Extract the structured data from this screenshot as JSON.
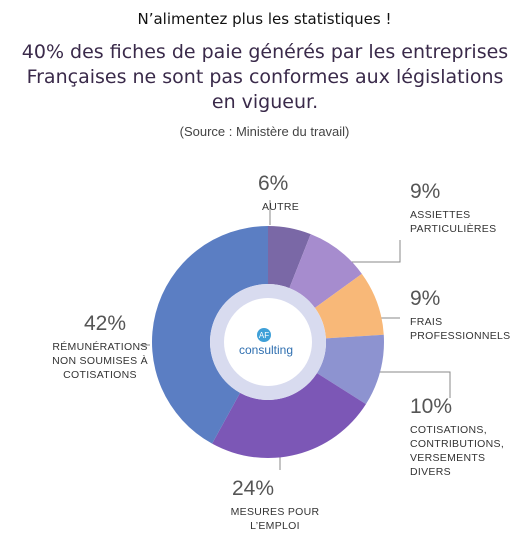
{
  "chart_data": {
    "type": "pie",
    "title": "N’alimentez plus les statistiques !",
    "subtitle": "40% des fiches de paie générés par les entreprises Françaises ne sont pas conformes aux législations en vigueur.",
    "source": "(Source : Ministère du travail)",
    "center_logo": {
      "mark": "AF",
      "text": "consulting"
    },
    "categories": [
      "AUTRE",
      "ASSIETTES PARTICULIÈRES",
      "FRAIS PROFESSIONNELS",
      "COTISATIONS, CONTRIBUTIONS, VERSEMENTS DIVERS",
      "MESURES POUR L’EMPLOI",
      "RÉMUNÉRATIONS NON SOUMISES À COTISATIONS"
    ],
    "values": [
      6,
      9,
      9,
      10,
      24,
      42
    ],
    "value_labels": [
      "6%",
      "9%",
      "9%",
      "10%",
      "24%",
      "42%"
    ],
    "colors": [
      "#7a68a6",
      "#a68cce",
      "#f8b878",
      "#8d93d0",
      "#7c57b6",
      "#5b7ec3"
    ]
  }
}
